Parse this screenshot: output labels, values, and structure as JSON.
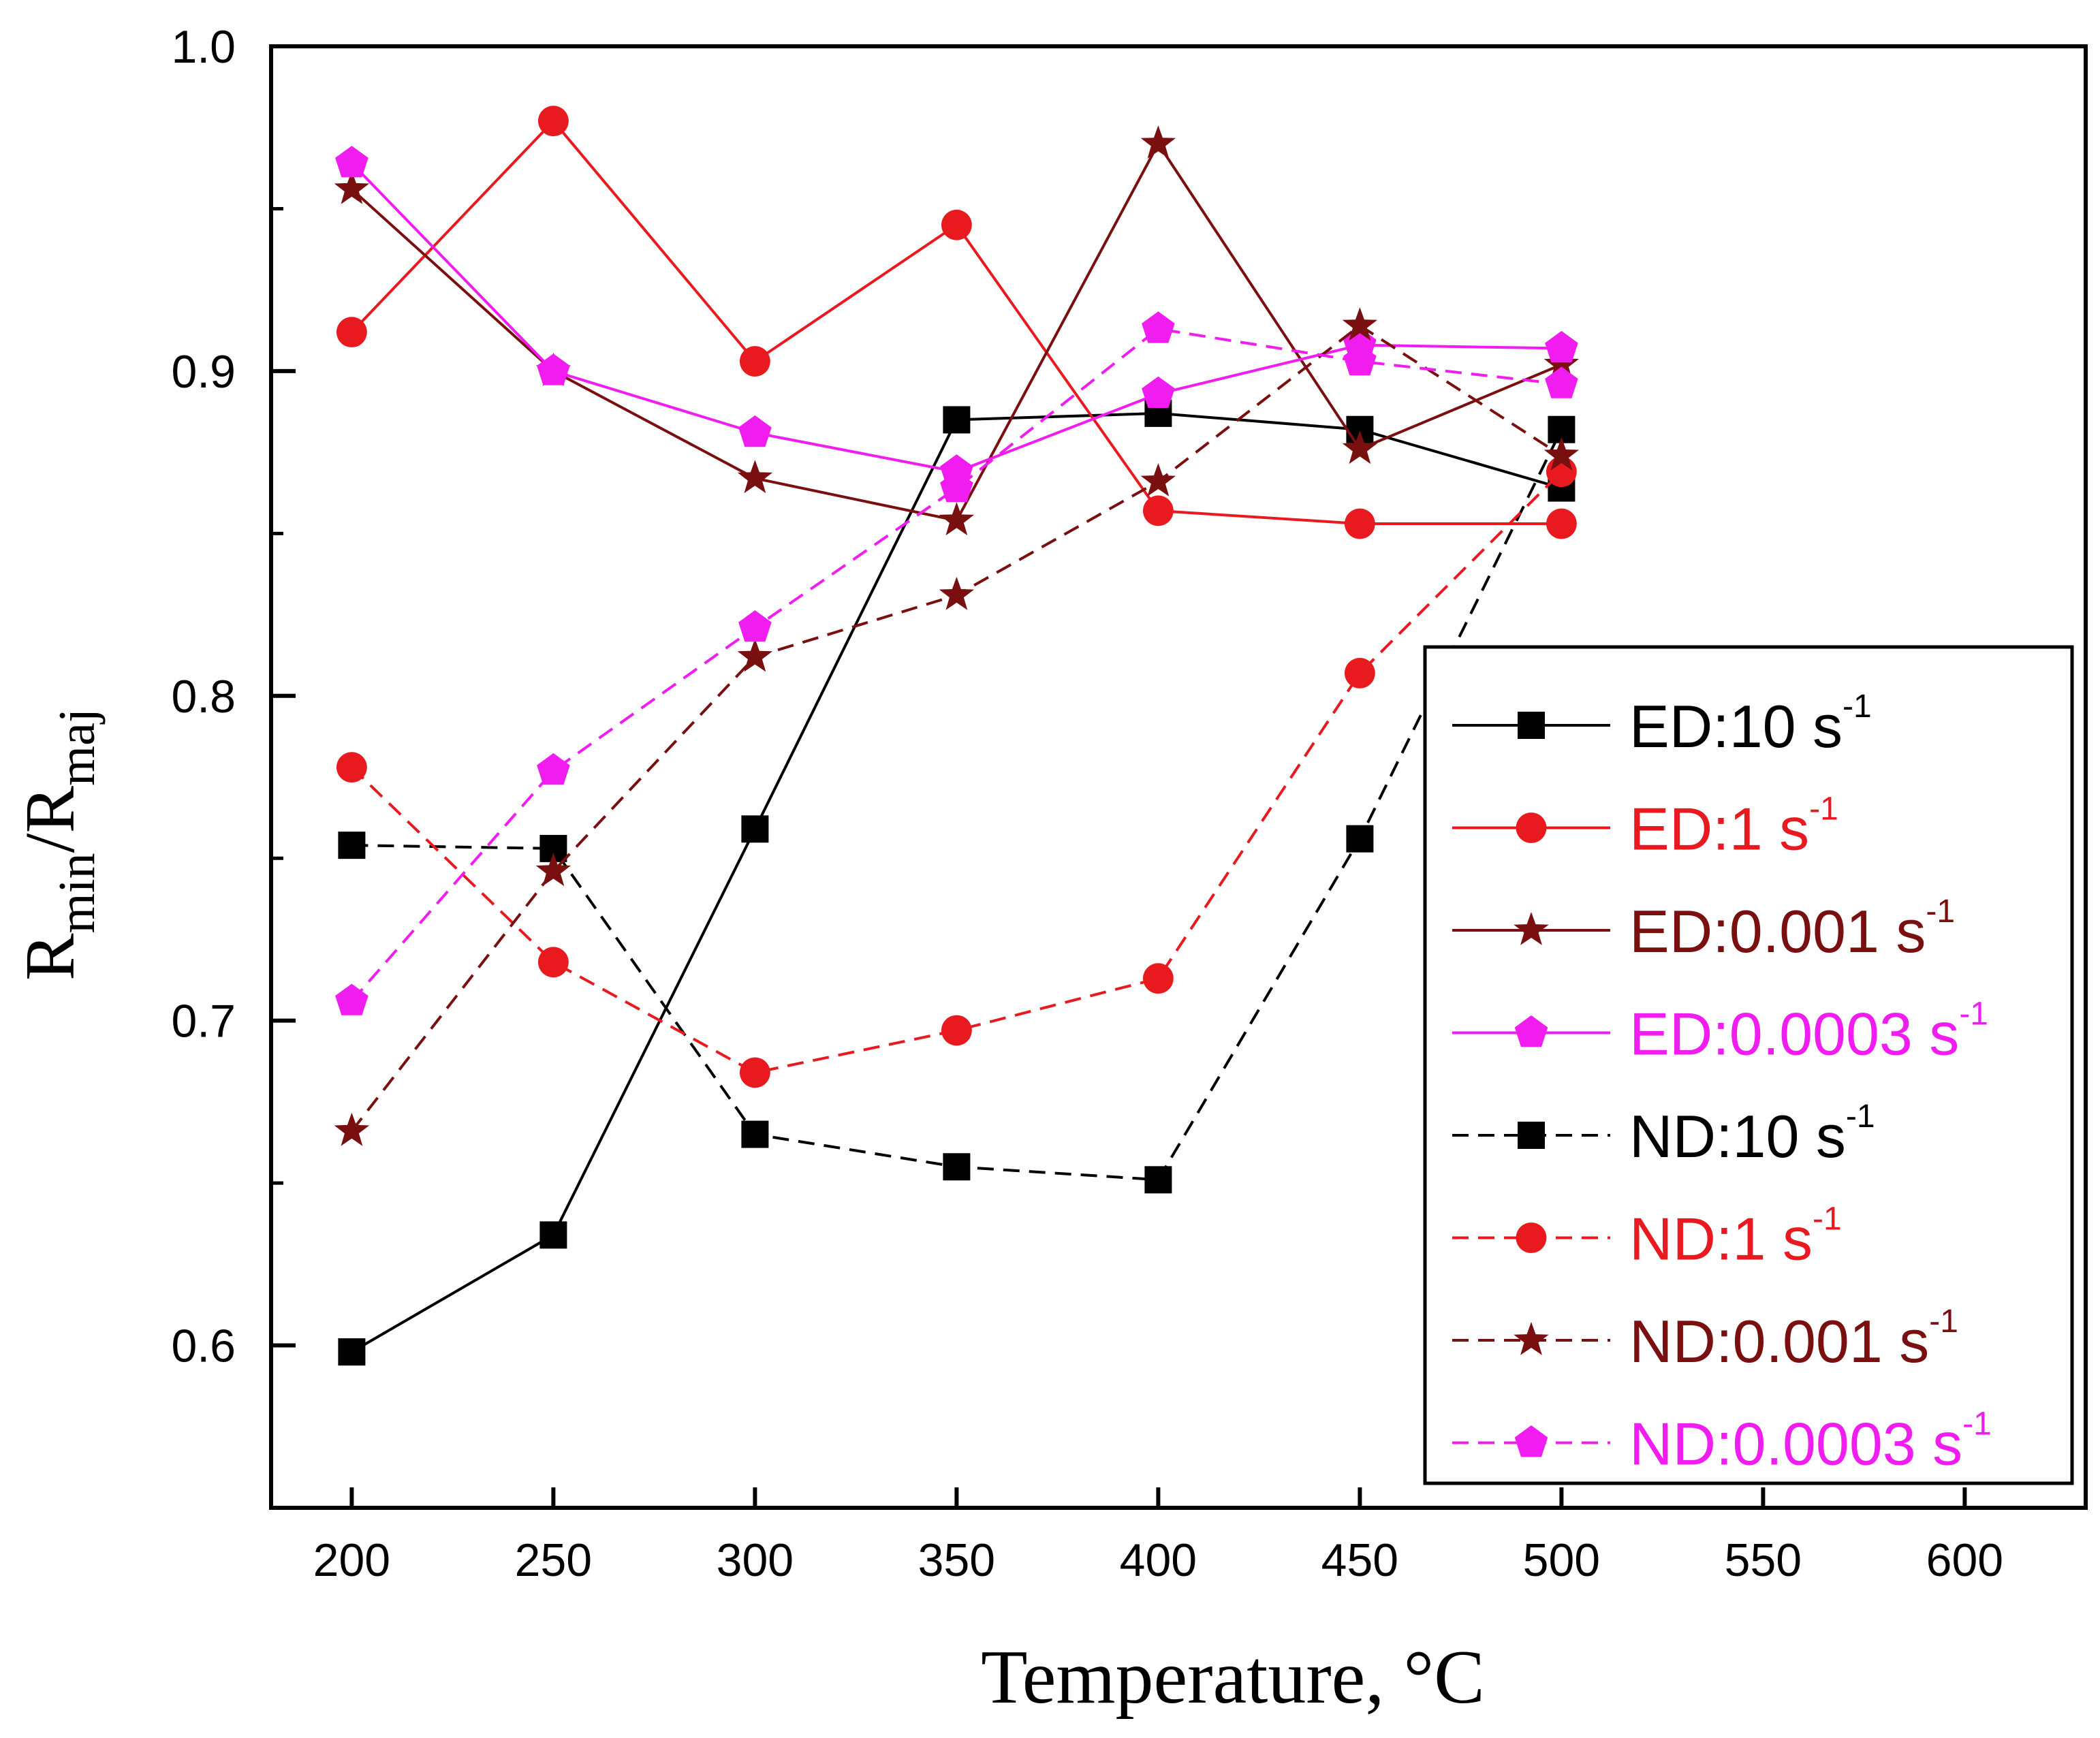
{
  "chart_data": {
    "type": "line",
    "title": "",
    "xlabel": "Temperature, °C",
    "ylabel": {
      "base1": "R",
      "sub1": "min",
      "slash": "/",
      "base2": "R",
      "sub2": "maj"
    },
    "xlim": [
      180,
      630
    ],
    "ylim": [
      0.55,
      1.0
    ],
    "xticks": [
      200,
      250,
      300,
      350,
      400,
      450,
      500,
      550,
      600
    ],
    "yticks": [
      0.6,
      0.7,
      0.8,
      0.9,
      1.0
    ],
    "ytick_labels": [
      "0.6",
      "0.7",
      "0.8",
      "0.9",
      "1.0"
    ],
    "legend_position": "bottom-right",
    "x": [
      200,
      250,
      300,
      350,
      400,
      450,
      500
    ],
    "series": [
      {
        "name": "ED:10",
        "unit": "s",
        "sup": "-1",
        "color": "#000000",
        "marker": "square",
        "dash": "solid",
        "values": [
          0.598,
          0.634,
          0.759,
          0.885,
          0.887,
          0.882,
          0.864
        ]
      },
      {
        "name": "ED:1",
        "unit": "s",
        "sup": "-1",
        "color": "#e8191f",
        "marker": "circle",
        "dash": "solid",
        "values": [
          0.912,
          0.977,
          0.903,
          0.945,
          0.857,
          0.853,
          0.853
        ]
      },
      {
        "name": "ED:0.001",
        "unit": "s",
        "sup": "-1",
        "color": "#7a0f0f",
        "marker": "star",
        "dash": "solid",
        "values": [
          0.956,
          0.9,
          0.867,
          0.854,
          0.97,
          0.876,
          0.902
        ]
      },
      {
        "name": "ED:0.0003",
        "unit": "s",
        "sup": "-1",
        "color": "#f01cf0",
        "marker": "pentagon",
        "dash": "solid",
        "values": [
          0.964,
          0.9,
          0.881,
          0.869,
          0.893,
          0.908,
          0.907
        ]
      },
      {
        "name": "ND:10",
        "unit": "s",
        "sup": "-1",
        "color": "#000000",
        "marker": "square",
        "dash": "dashed",
        "values": [
          0.754,
          0.753,
          0.665,
          0.655,
          0.651,
          0.756,
          0.882
        ]
      },
      {
        "name": "ND:1",
        "unit": "s",
        "sup": "-1",
        "color": "#e8191f",
        "marker": "circle",
        "dash": "dashed",
        "values": [
          0.778,
          0.718,
          0.684,
          0.697,
          0.713,
          0.807,
          0.869
        ]
      },
      {
        "name": "ND:0.001",
        "unit": "s",
        "sup": "-1",
        "color": "#7a0f0f",
        "marker": "star",
        "dash": "dashed",
        "values": [
          0.666,
          0.746,
          0.812,
          0.831,
          0.866,
          0.914,
          0.874
        ]
      },
      {
        "name": "ND:0.0003",
        "unit": "s",
        "sup": "-1",
        "color": "#f01cf0",
        "marker": "pentagon",
        "dash": "dashed",
        "values": [
          0.706,
          0.777,
          0.821,
          0.864,
          0.913,
          0.903,
          0.896
        ]
      }
    ]
  }
}
